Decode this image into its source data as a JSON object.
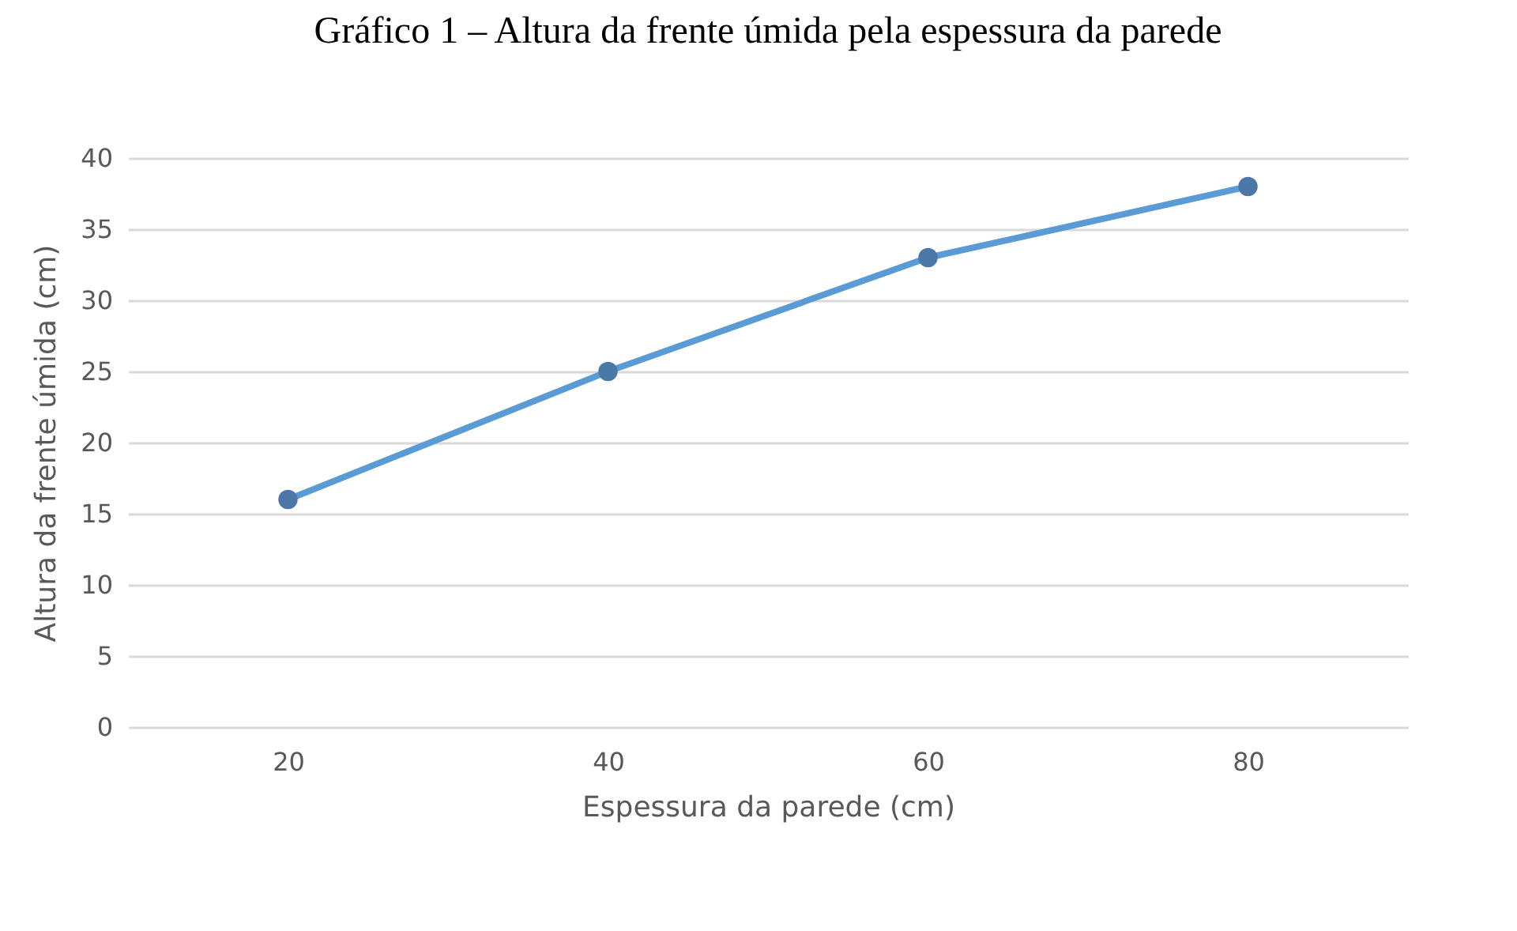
{
  "chart_data": {
    "type": "line",
    "title": "Gráfico 1 – Altura da frente úmida pela espessura da parede",
    "xlabel": "Espessura da parede (cm)",
    "ylabel": "Altura da frente úmida (cm)",
    "categories": [
      "20",
      "40",
      "60",
      "80"
    ],
    "series": [
      {
        "color": "#5b9bd5",
        "values": [
          16,
          25,
          33,
          38
        ]
      }
    ],
    "ylim": [
      0,
      40
    ],
    "yticks": [
      0,
      5,
      10,
      15,
      20,
      25,
      30,
      35,
      40
    ],
    "grid": "y",
    "marker": "circle",
    "line_style": "solid"
  }
}
